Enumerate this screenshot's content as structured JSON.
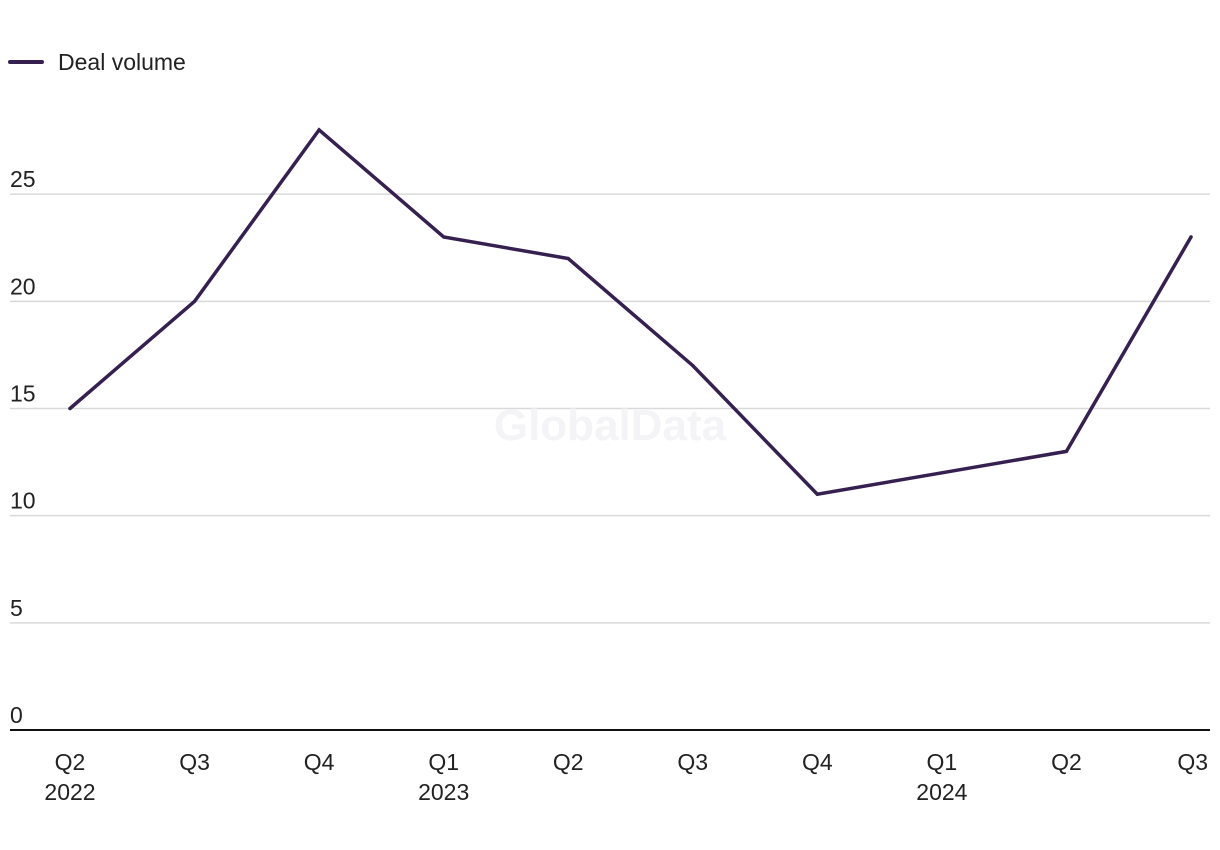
{
  "watermark": "GlobalData",
  "chart_data": {
    "type": "line",
    "categories": [
      "Q2",
      "Q3",
      "Q4",
      "Q1",
      "Q2",
      "Q3",
      "Q4",
      "Q1",
      "Q2",
      "Q3"
    ],
    "year_labels": [
      "2022",
      "",
      "",
      "2023",
      "",
      "",
      "",
      "2024",
      "",
      ""
    ],
    "series": [
      {
        "name": "Deal volume",
        "color": "#35204f",
        "values": [
          15,
          20,
          28,
          23,
          22,
          17,
          11,
          12,
          13,
          23
        ]
      }
    ],
    "yticks": [
      0,
      5,
      10,
      15,
      20,
      25
    ],
    "ylim": [
      0,
      30
    ],
    "grid": true,
    "legend_position": "top-left",
    "gridline_color": "#d9d9d9",
    "axis_color": "#111111"
  }
}
